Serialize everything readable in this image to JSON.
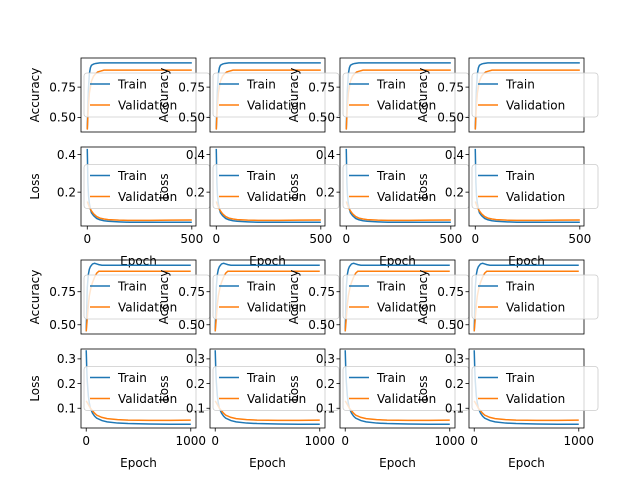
{
  "chart_data": {
    "type": "line",
    "legend_placement": "center-right",
    "grid": false,
    "colors": {
      "train": "#1f77b4",
      "validation": "#ff7f0e"
    },
    "rows": [
      {
        "metric": "accuracy",
        "ylabel": "Accuracy",
        "xlabel": "",
        "xlim": [
          -30,
          520
        ],
        "ylim": [
          0.38,
          0.99
        ],
        "xticks": [],
        "yticks": [
          {
            "v": 0.5,
            "t": "0.50"
          },
          {
            "v": 0.75,
            "t": "0.75"
          }
        ],
        "series": [
          {
            "name": "Train",
            "color": "#1f77b4",
            "x": [
              0,
              5,
              10,
              15,
              20,
              30,
              40,
              60,
              80,
              100,
              500
            ],
            "y": [
              0.4,
              0.72,
              0.86,
              0.91,
              0.93,
              0.94,
              0.945,
              0.95,
              0.95,
              0.95,
              0.95
            ]
          },
          {
            "name": "Validation",
            "color": "#ff7f0e",
            "x": [
              0,
              5,
              10,
              15,
              20,
              30,
              40,
              50,
              60,
              80,
              500
            ],
            "y": [
              0.4,
              0.58,
              0.7,
              0.75,
              0.8,
              0.84,
              0.86,
              0.875,
              0.88,
              0.89,
              0.89
            ]
          }
        ]
      },
      {
        "metric": "loss",
        "ylabel": "Loss",
        "xlabel": "Epoch",
        "xlim": [
          -30,
          520
        ],
        "ylim": [
          0.02,
          0.44
        ],
        "xticks": [
          {
            "v": 0,
            "t": "0"
          },
          {
            "v": 500,
            "t": "500"
          }
        ],
        "yticks": [
          {
            "v": 0.2,
            "t": "0.2"
          },
          {
            "v": 0.4,
            "t": "0.4"
          }
        ],
        "series": [
          {
            "name": "Train",
            "color": "#1f77b4",
            "x": [
              0,
              3,
              6,
              10,
              15,
              20,
              30,
              45,
              60,
              80,
              100,
              150,
              200,
              300,
              400,
              500
            ],
            "y": [
              0.43,
              0.25,
              0.18,
              0.14,
              0.11,
              0.09,
              0.075,
              0.06,
              0.053,
              0.048,
              0.045,
              0.042,
              0.04,
              0.04,
              0.04,
              0.04
            ]
          },
          {
            "name": "Validation",
            "color": "#ff7f0e",
            "x": [
              0,
              10,
              20,
              30,
              45,
              60,
              80,
              100,
              150,
              200,
              300,
              400,
              500
            ],
            "y": [
              0.15,
              0.12,
              0.1,
              0.085,
              0.07,
              0.062,
              0.057,
              0.054,
              0.051,
              0.05,
              0.05,
              0.051,
              0.052
            ]
          }
        ]
      },
      {
        "metric": "accuracy",
        "ylabel": "Accuracy",
        "xlabel": "",
        "xlim": [
          -50,
          1050
        ],
        "ylim": [
          0.43,
          0.99
        ],
        "xticks": [],
        "yticks": [
          {
            "v": 0.5,
            "t": "0.50"
          },
          {
            "v": 0.75,
            "t": "0.75"
          }
        ],
        "series": [
          {
            "name": "Train",
            "color": "#1f77b4",
            "x": [
              0,
              10,
              20,
              30,
              40,
              60,
              80,
              100,
              120,
              150,
              1000
            ],
            "y": [
              0.45,
              0.78,
              0.88,
              0.92,
              0.94,
              0.96,
              0.965,
              0.96,
              0.955,
              0.95,
              0.95
            ]
          },
          {
            "name": "Validation",
            "color": "#ff7f0e",
            "x": [
              0,
              10,
              20,
              30,
              45,
              60,
              80,
              100,
              120,
              1000
            ],
            "y": [
              0.45,
              0.55,
              0.65,
              0.72,
              0.78,
              0.82,
              0.86,
              0.89,
              0.905,
              0.905
            ]
          }
        ]
      },
      {
        "metric": "loss",
        "ylabel": "Loss",
        "xlabel": "Epoch",
        "xlim": [
          -50,
          1050
        ],
        "ylim": [
          0.02,
          0.34
        ],
        "xticks": [
          {
            "v": 0,
            "t": "0"
          },
          {
            "v": 1000,
            "t": "1000"
          }
        ],
        "yticks": [
          {
            "v": 0.1,
            "t": "0.1"
          },
          {
            "v": 0.2,
            "t": "0.2"
          },
          {
            "v": 0.3,
            "t": "0.3"
          }
        ],
        "series": [
          {
            "name": "Train",
            "color": "#1f77b4",
            "x": [
              0,
              5,
              10,
              20,
              30,
              40,
              60,
              80,
              100,
              150,
              200,
              300,
              400,
              600,
              800,
              1000
            ],
            "y": [
              0.335,
              0.26,
              0.21,
              0.15,
              0.12,
              0.1,
              0.08,
              0.068,
              0.06,
              0.05,
              0.045,
              0.04,
              0.038,
              0.036,
              0.035,
              0.035
            ]
          },
          {
            "name": "Validation",
            "color": "#ff7f0e",
            "x": [
              0,
              20,
              40,
              60,
              80,
              100,
              150,
              200,
              300,
              400,
              600,
              800,
              1000
            ],
            "y": [
              0.13,
              0.115,
              0.1,
              0.09,
              0.08,
              0.072,
              0.063,
              0.058,
              0.054,
              0.052,
              0.051,
              0.051,
              0.052
            ]
          }
        ]
      }
    ]
  }
}
